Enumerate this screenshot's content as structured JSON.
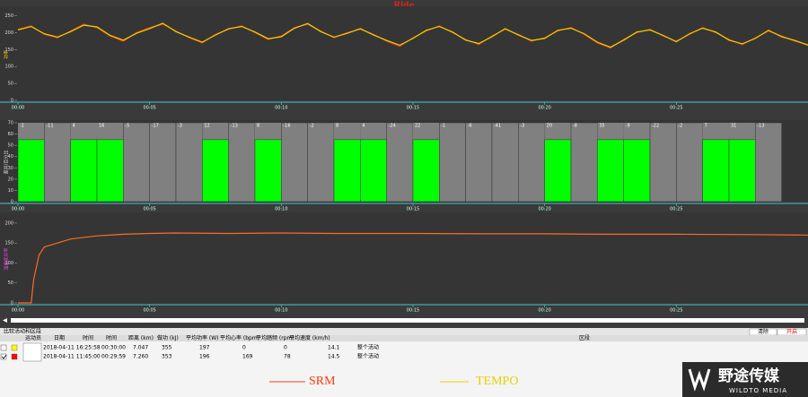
{
  "chart_data": [
    {
      "type": "line",
      "title": "Ride",
      "ylabel": "功率",
      "xlim": [
        0,
        30
      ],
      "xticks": [
        {
          "value": 0,
          "label": "00:00"
        },
        {
          "value": 5,
          "label": "00:05"
        },
        {
          "value": 10,
          "label": "00:10"
        },
        {
          "value": 15,
          "label": "00:15"
        },
        {
          "value": 20,
          "label": "00:20"
        },
        {
          "value": 25,
          "label": "00:25"
        }
      ],
      "ylim": [
        0,
        270
      ],
      "yticks": [
        0,
        50,
        100,
        150,
        200,
        250
      ],
      "x": [
        0,
        0.5,
        1,
        1.5,
        2,
        2.5,
        3,
        3.5,
        4,
        4.5,
        5,
        5.5,
        6,
        6.5,
        7,
        7.5,
        8,
        8.5,
        9,
        9.5,
        10,
        10.5,
        11,
        11.5,
        12,
        12.5,
        13,
        13.5,
        14,
        14.5,
        15,
        15.5,
        16,
        16.5,
        17,
        17.5,
        18,
        18.5,
        19,
        19.5,
        20,
        20.5,
        21,
        21.5,
        22,
        22.5,
        23,
        23.5,
        24,
        24.5,
        25,
        25.5,
        26,
        26.5,
        27,
        27.5,
        28,
        28.5,
        29,
        29.5,
        30
      ],
      "series": [
        {
          "name": "SRM",
          "color": "#ff3a10",
          "values": [
            210,
            220,
            195,
            185,
            205,
            225,
            215,
            190,
            175,
            200,
            215,
            225,
            205,
            185,
            170,
            195,
            210,
            220,
            200,
            180,
            190,
            215,
            225,
            205,
            185,
            200,
            210,
            195,
            175,
            160,
            185,
            205,
            220,
            200,
            180,
            165,
            190,
            210,
            195,
            175,
            185,
            205,
            215,
            195,
            170,
            155,
            180,
            200,
            210,
            190,
            175,
            195,
            215,
            200,
            180,
            165,
            185,
            205,
            190,
            175,
            165
          ]
        },
        {
          "name": "TEMPO",
          "color": "#e8d000",
          "values": [
            208,
            218,
            197,
            187,
            203,
            222,
            217,
            192,
            178,
            198,
            212,
            228,
            203,
            187,
            172,
            193,
            212,
            218,
            202,
            182,
            188,
            213,
            227,
            203,
            187,
            198,
            212,
            193,
            177,
            163,
            183,
            207,
            218,
            202,
            178,
            168,
            188,
            212,
            193,
            177,
            183,
            207,
            213,
            197,
            172,
            157,
            178,
            202,
            208,
            192,
            173,
            197,
            213,
            202,
            178,
            167,
            183,
            207,
            188,
            177,
            163
          ]
        }
      ]
    },
    {
      "type": "bar",
      "ylabel": "差异/百分比",
      "xlim": [
        0,
        30
      ],
      "xticks": [
        {
          "value": 0,
          "label": "00:00"
        },
        {
          "value": 5,
          "label": "00:05"
        },
        {
          "value": 10,
          "label": "00:10"
        },
        {
          "value": 15,
          "label": "00:15"
        },
        {
          "value": 20,
          "label": "00:20"
        },
        {
          "value": 25,
          "label": "00:25"
        }
      ],
      "ylim": [
        0,
        70
      ],
      "yticks": [
        0,
        10,
        20,
        30,
        40,
        50,
        60,
        70
      ],
      "x": [
        0,
        1,
        2,
        3,
        4,
        5,
        6,
        7,
        8,
        9,
        10,
        11,
        12,
        13,
        14,
        15,
        16,
        17,
        18,
        19,
        20,
        21,
        22,
        23,
        24,
        25,
        26,
        27,
        28
      ],
      "values": [
        55,
        70,
        55,
        55,
        70,
        70,
        70,
        55,
        70,
        55,
        70,
        70,
        55,
        55,
        70,
        55,
        70,
        70,
        70,
        70,
        55,
        70,
        55,
        55,
        70,
        70,
        55,
        55,
        70
      ],
      "differences": [
        -1,
        -11,
        4,
        16,
        -5,
        -17,
        -3,
        12,
        -13,
        8,
        -16,
        -2,
        8,
        4,
        -24,
        22,
        -1,
        -6,
        -41,
        -3,
        20,
        -8,
        35,
        -9,
        -22,
        -2,
        7,
        31,
        -13
      ],
      "colors": [
        "#00ff00",
        "#808080",
        "#00ff00",
        "#00ff00",
        "#808080",
        "#808080",
        "#808080",
        "#00ff00",
        "#808080",
        "#00ff00",
        "#808080",
        "#808080",
        "#00ff00",
        "#00ff00",
        "#808080",
        "#00ff00",
        "#808080",
        "#808080",
        "#808080",
        "#808080",
        "#00ff00",
        "#808080",
        "#00ff00",
        "#00ff00",
        "#808080",
        "#808080",
        "#00ff00",
        "#00ff00",
        "#808080"
      ]
    },
    {
      "type": "line",
      "ylabel": "温度差异率",
      "xlim": [
        0,
        30
      ],
      "xticks": [
        {
          "value": 0,
          "label": "00:00"
        },
        {
          "value": 5,
          "label": "00:05"
        },
        {
          "value": 10,
          "label": "00:10"
        },
        {
          "value": 15,
          "label": "00:15"
        },
        {
          "value": 20,
          "label": "00:20"
        },
        {
          "value": 25,
          "label": "00:25"
        }
      ],
      "ylim": [
        0,
        220
      ],
      "yticks": [
        0,
        50,
        100,
        150,
        200
      ],
      "x": [
        0,
        0.5,
        0.6,
        0.8,
        1,
        1.5,
        2,
        3,
        4,
        5,
        6,
        8,
        10,
        12,
        15,
        18,
        20,
        22,
        25,
        28,
        30
      ],
      "series": [
        {
          "color": "#ff6a20",
          "values": [
            0,
            0,
            60,
            120,
            140,
            150,
            160,
            168,
            172,
            174,
            175,
            174,
            175,
            174,
            174,
            173,
            173,
            172,
            172,
            171,
            170
          ]
        }
      ]
    }
  ],
  "table": {
    "title": "比较活动和区段",
    "buttons": [
      "清除",
      "开启"
    ],
    "columns": [
      "运动员",
      "日期",
      "时间",
      "时间",
      "距离 (km)",
      "做功 (kJ)",
      "平均功率 (W)",
      "平均心率 (bpm)",
      "平均踏频 (rpm)",
      "平均速度 (km/h)",
      "区段"
    ],
    "rows": [
      {
        "color": "#ffff00",
        "checked": false,
        "cells": [
          "2018-04-11 16:25:58",
          "00:30:00",
          "7.047",
          "355",
          "197",
          "0",
          "0",
          "14.1",
          "整个活动"
        ]
      },
      {
        "color": "#ff0000",
        "checked": true,
        "cells": [
          "2018-04-11 11:45:00",
          "00:29:59",
          "7.260",
          "353",
          "196",
          "169",
          "78",
          "14.5",
          "整个活动"
        ]
      }
    ]
  },
  "watermark": {
    "name": "野途传媒",
    "sub": "WILDTO MEDIA"
  }
}
